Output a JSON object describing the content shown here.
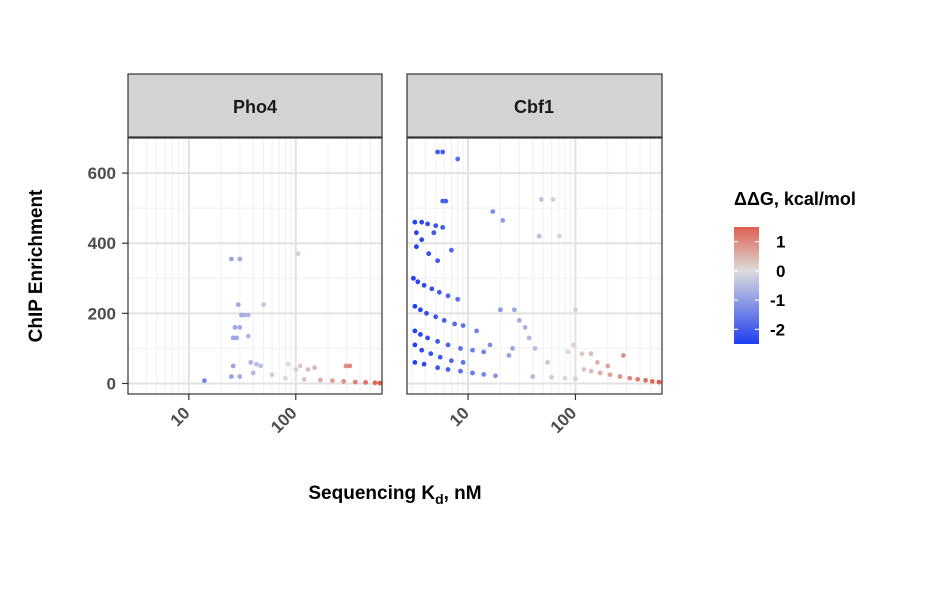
{
  "chart_data": {
    "type": "scatter",
    "ylabel": "ChIP Enrichment",
    "xlabel_main": "Sequencing K",
    "xlabel_sub": "d",
    "xlabel_tail": ", nM",
    "x_scale": "log10",
    "xlim": [
      2.7,
      640
    ],
    "ylim": [
      -30,
      700
    ],
    "x_ticks": [
      10,
      100
    ],
    "y_ticks": [
      0,
      200,
      400,
      600
    ],
    "grid": true,
    "legend": {
      "title": "ΔΔG, kcal/mol",
      "position": "right",
      "labels": [
        1,
        0,
        -1,
        -2
      ],
      "range": [
        -2.5,
        1.5
      ],
      "colors": {
        "low": "#1e3ff0",
        "mid": "#dcdcdc",
        "high": "#e06050"
      }
    },
    "panels": [
      {
        "name": "Pho4",
        "points": [
          [
            14,
            8
          ],
          [
            25,
            355
          ],
          [
            30,
            355
          ],
          [
            29,
            225
          ],
          [
            31,
            195
          ],
          [
            33,
            195
          ],
          [
            27,
            160
          ],
          [
            30,
            160
          ],
          [
            26,
            130
          ],
          [
            28,
            130
          ],
          [
            36,
            195
          ],
          [
            36,
            135
          ],
          [
            50,
            225
          ],
          [
            38,
            60
          ],
          [
            43,
            55
          ],
          [
            47,
            50
          ],
          [
            26,
            50
          ],
          [
            25,
            20
          ],
          [
            105,
            370
          ],
          [
            85,
            55
          ],
          [
            110,
            50
          ],
          [
            100,
            40
          ],
          [
            130,
            40
          ],
          [
            150,
            45
          ],
          [
            295,
            50
          ],
          [
            320,
            50
          ],
          [
            30,
            20
          ],
          [
            40,
            30
          ],
          [
            60,
            25
          ],
          [
            80,
            15
          ],
          [
            120,
            12
          ],
          [
            170,
            10
          ],
          [
            220,
            8
          ],
          [
            280,
            6
          ],
          [
            360,
            4
          ],
          [
            450,
            3
          ],
          [
            550,
            2
          ],
          [
            610,
            1
          ]
        ]
      },
      {
        "name": "Cbf1",
        "points": [
          [
            5.2,
            660
          ],
          [
            5.8,
            660
          ],
          [
            8.0,
            640
          ],
          [
            5.8,
            520
          ],
          [
            6.2,
            520
          ],
          [
            3.2,
            460
          ],
          [
            3.7,
            460
          ],
          [
            4.2,
            455
          ],
          [
            5.0,
            450
          ],
          [
            5.8,
            445
          ],
          [
            3.3,
            430
          ],
          [
            4.8,
            430
          ],
          [
            3.7,
            410
          ],
          [
            3.3,
            390
          ],
          [
            4.3,
            370
          ],
          [
            5.2,
            350
          ],
          [
            7.0,
            380
          ],
          [
            3.1,
            300
          ],
          [
            3.4,
            290
          ],
          [
            3.9,
            280
          ],
          [
            4.6,
            270
          ],
          [
            5.4,
            260
          ],
          [
            6.5,
            250
          ],
          [
            8.0,
            240
          ],
          [
            3.2,
            220
          ],
          [
            3.6,
            210
          ],
          [
            4.1,
            200
          ],
          [
            5.0,
            190
          ],
          [
            6.0,
            180
          ],
          [
            7.5,
            170
          ],
          [
            9.0,
            165
          ],
          [
            12,
            150
          ],
          [
            3.2,
            150
          ],
          [
            3.6,
            140
          ],
          [
            4.2,
            130
          ],
          [
            5.2,
            120
          ],
          [
            6.5,
            110
          ],
          [
            8.5,
            100
          ],
          [
            11,
            95
          ],
          [
            14,
            90
          ],
          [
            3.2,
            110
          ],
          [
            3.7,
            95
          ],
          [
            4.5,
            85
          ],
          [
            5.5,
            75
          ],
          [
            7.0,
            65
          ],
          [
            9.0,
            60
          ],
          [
            3.2,
            60
          ],
          [
            3.9,
            55
          ],
          [
            5.2,
            45
          ],
          [
            6.5,
            40
          ],
          [
            8.5,
            35
          ],
          [
            11,
            30
          ],
          [
            14,
            26
          ],
          [
            18,
            22
          ],
          [
            16,
            110
          ],
          [
            20,
            210
          ],
          [
            17,
            490
          ],
          [
            21,
            465
          ],
          [
            27,
            210
          ],
          [
            30,
            180
          ],
          [
            34,
            160
          ],
          [
            37,
            130
          ],
          [
            26,
            100
          ],
          [
            24,
            80
          ],
          [
            42,
            100
          ],
          [
            55,
            60
          ],
          [
            48,
            525
          ],
          [
            62,
            525
          ],
          [
            46,
            420
          ],
          [
            71,
            420
          ],
          [
            100,
            210
          ],
          [
            96,
            110
          ],
          [
            85,
            90
          ],
          [
            115,
            85
          ],
          [
            140,
            85
          ],
          [
            160,
            60
          ],
          [
            200,
            50
          ],
          [
            280,
            80
          ],
          [
            120,
            40
          ],
          [
            140,
            35
          ],
          [
            170,
            30
          ],
          [
            210,
            25
          ],
          [
            260,
            20
          ],
          [
            320,
            15
          ],
          [
            380,
            12
          ],
          [
            450,
            9
          ],
          [
            520,
            6
          ],
          [
            600,
            4
          ],
          [
            40,
            20
          ],
          [
            60,
            18
          ],
          [
            80,
            15
          ],
          [
            100,
            14
          ]
        ]
      }
    ]
  }
}
